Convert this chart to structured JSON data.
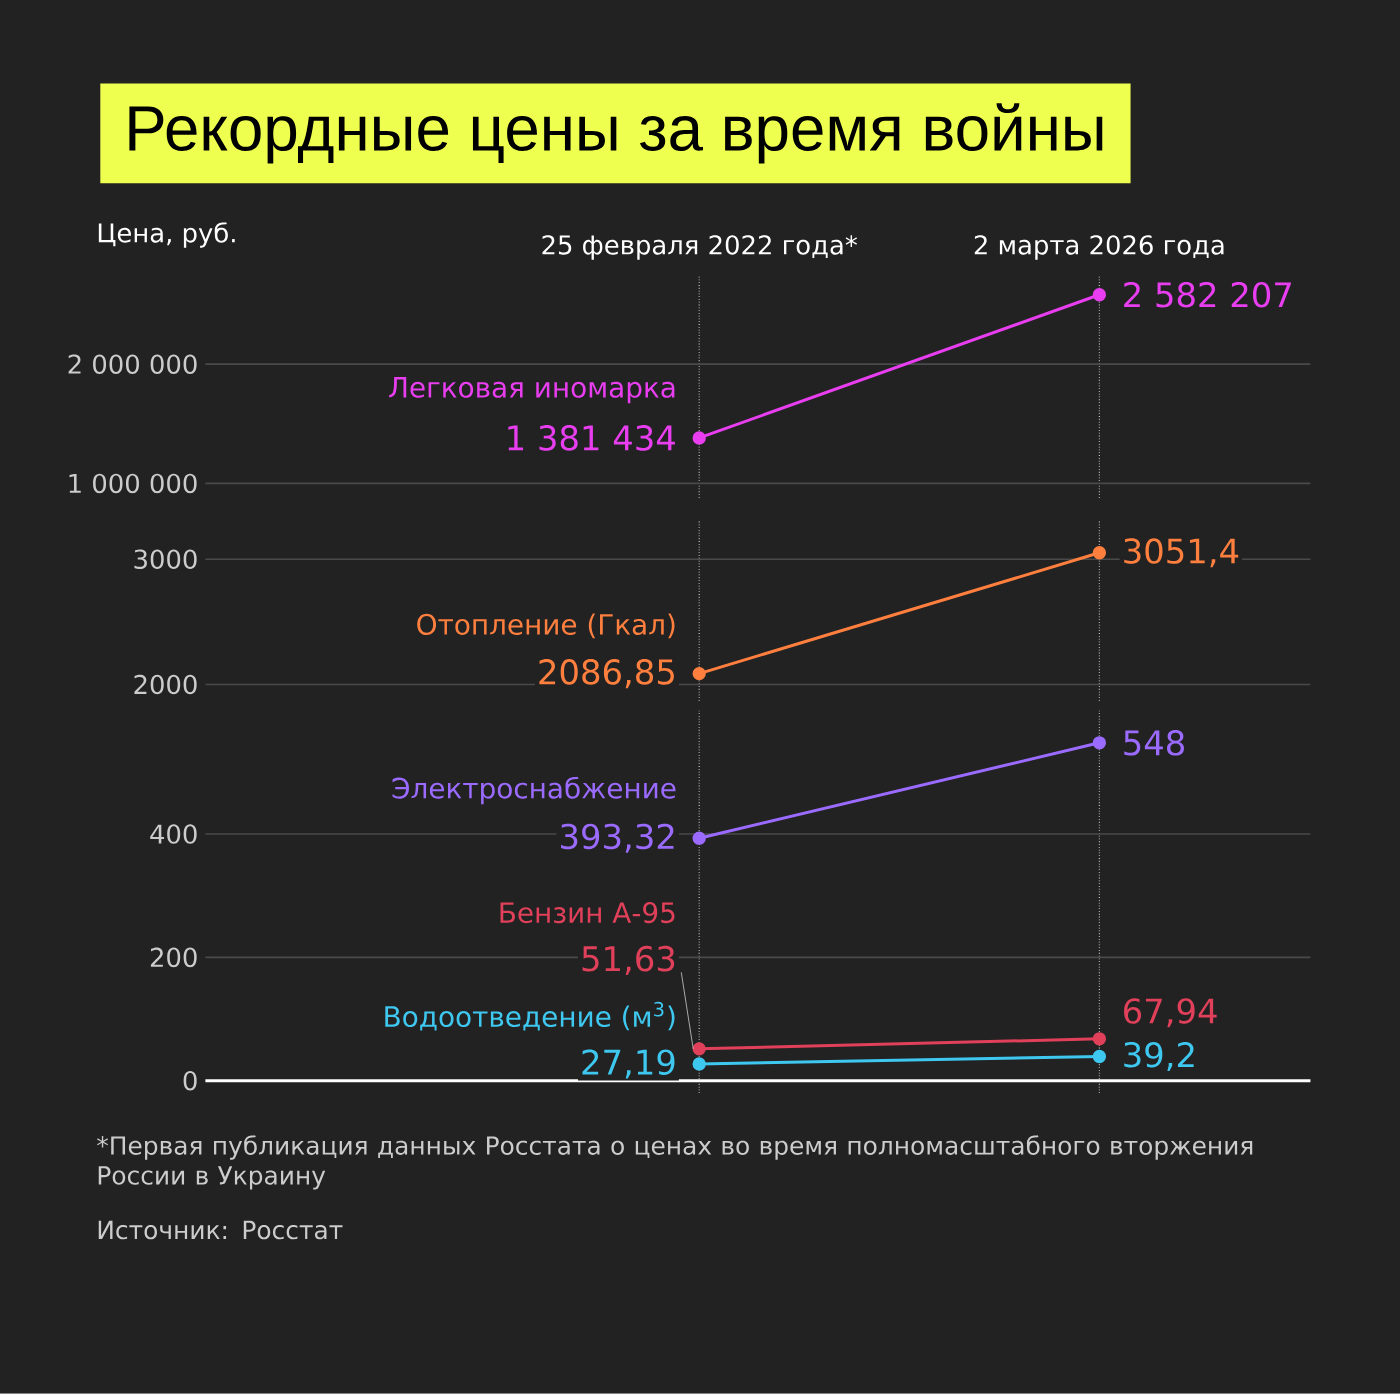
{
  "chart_data": [
    {
      "type": "line",
      "title": "Рекордные цены за время войны",
      "ylabel": "Цена, руб.",
      "categories": [
        "25 февраля 2022 года*",
        "2 марта 2026 года"
      ],
      "ylim": [
        880000,
        2750000
      ],
      "yticks": [
        {
          "value": 1000000,
          "label": "1 000 000"
        },
        {
          "value": 2000000,
          "label": "2 000 000"
        }
      ],
      "grid": true,
      "marker": "circle",
      "line_style": "solid",
      "series": [
        {
          "name": "Легковая иномарка",
          "color": "#e83ef0",
          "values": [
            1381434,
            2582207
          ],
          "value_labels": [
            "1 381 434",
            "2 582 207"
          ]
        }
      ]
    },
    {
      "type": "line",
      "categories": [
        null,
        null
      ],
      "tick_labels": "y",
      "ylim": [
        1870,
        3300
      ],
      "yticks": [
        2000,
        3000
      ],
      "grid": true,
      "marker": "circle",
      "line_style": "solid",
      "series": [
        {
          "name": "Отопление (Гкал)",
          "color": "#ff7f3f",
          "values": [
            2086.85,
            3051.4
          ],
          "value_labels": [
            "2086,85",
            "3051,4"
          ]
        }
      ]
    },
    {
      "type": "line",
      "categories": [
        null,
        null
      ],
      "tick_labels": "y",
      "ylim": [
        -20,
        600
      ],
      "yticks": [
        0,
        200,
        400
      ],
      "grid": true,
      "marker": "circle",
      "line_style": "solid",
      "ref_lines": [
        {
          "axis": "y",
          "value": 0,
          "color": "#ffffff"
        }
      ],
      "series": [
        {
          "name": "Электроснабжение",
          "color": "#9b6bff",
          "values": [
            393.32,
            548
          ],
          "value_labels": [
            "393,32",
            "548"
          ]
        },
        {
          "name": "Бензин А-95",
          "color": "#e0405a",
          "values": [
            51.63,
            67.94
          ],
          "value_labels": [
            "51,63",
            "67,94"
          ]
        },
        {
          "name": "Водоотведение (м$^{3}$)",
          "color": "#3ec8f0",
          "values": [
            27.19,
            39.2
          ],
          "value_labels": [
            "27,19",
            "39,2"
          ]
        }
      ],
      "annotations": [
        "*Первая публикация данных Росстата о ценах во время полномасштабного вторжения России в Украину",
        "Источник: Росстат"
      ]
    }
  ]
}
